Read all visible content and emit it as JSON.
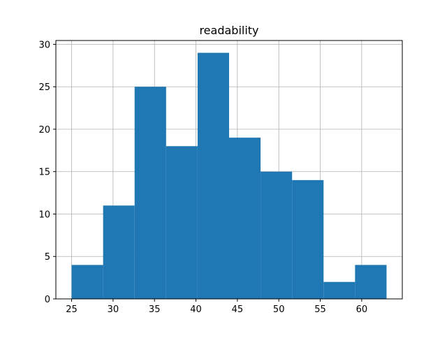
{
  "chart_data": {
    "type": "bar",
    "title": "readability",
    "xlabel": "",
    "ylabel": "",
    "bins": [
      {
        "start": 25.0,
        "end": 28.8,
        "count": 4
      },
      {
        "start": 28.8,
        "end": 32.6,
        "count": 11
      },
      {
        "start": 32.6,
        "end": 36.4,
        "count": 25
      },
      {
        "start": 36.4,
        "end": 40.2,
        "count": 18
      },
      {
        "start": 40.2,
        "end": 44.0,
        "count": 29
      },
      {
        "start": 44.0,
        "end": 47.8,
        "count": 19
      },
      {
        "start": 47.8,
        "end": 51.6,
        "count": 15
      },
      {
        "start": 51.6,
        "end": 55.4,
        "count": 14
      },
      {
        "start": 55.4,
        "end": 59.2,
        "count": 2
      },
      {
        "start": 59.2,
        "end": 63.0,
        "count": 4
      }
    ],
    "xlim": [
      23.1,
      64.9
    ],
    "ylim": [
      0,
      30.45
    ],
    "xticks": [
      25,
      30,
      35,
      40,
      45,
      50,
      55,
      60
    ],
    "yticks": [
      0,
      5,
      10,
      15,
      20,
      25,
      30
    ],
    "grid": true,
    "colors": {
      "bar": "#1f77b4",
      "grid": "#b0b0b0",
      "axis": "#000000"
    }
  }
}
